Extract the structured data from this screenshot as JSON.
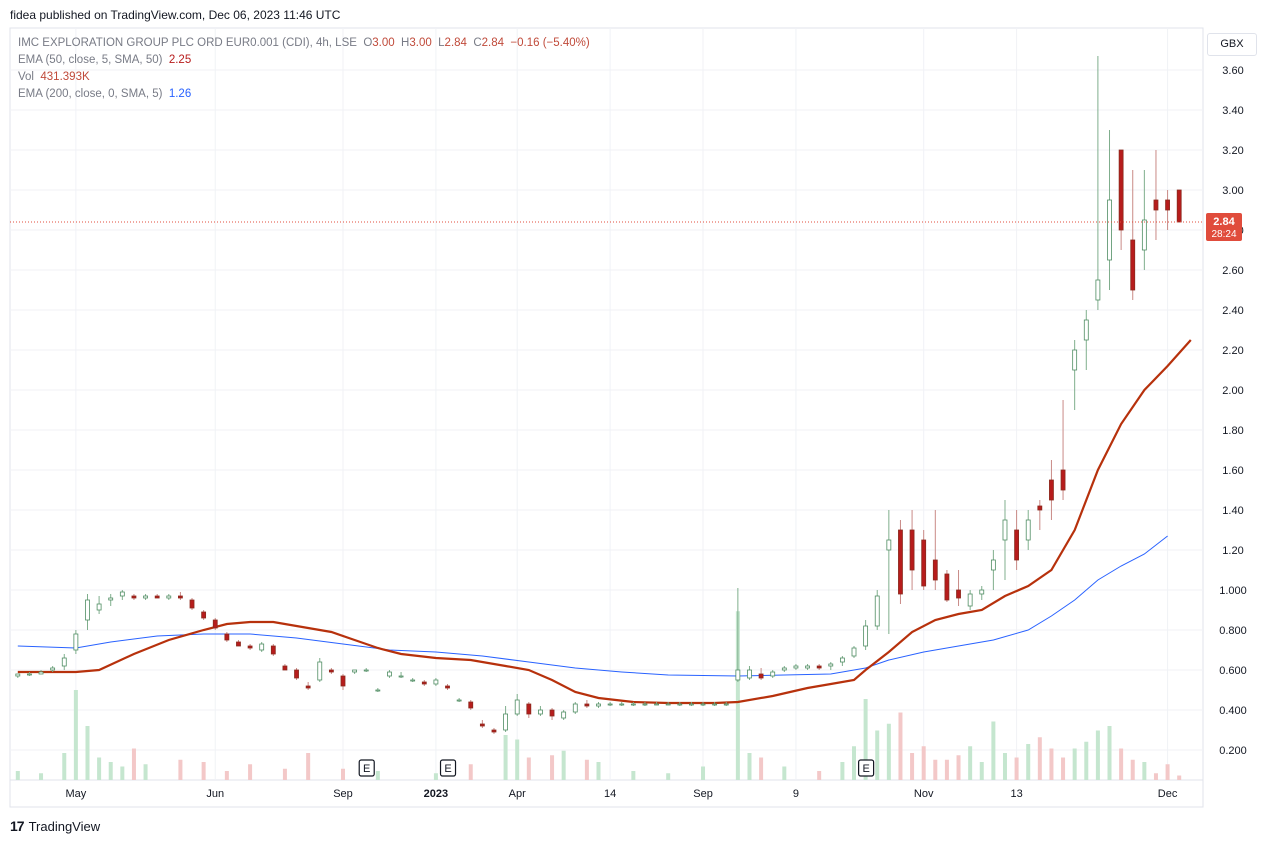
{
  "header": {
    "published_line": "fidea published on TradingView.com, Dec 06, 2023 11:46 UTC"
  },
  "legend": {
    "symbol_line": "IMC EXPLORATION GROUP PLC ORD EUR0.001 (CDI), 4h, LSE",
    "ohlc": {
      "o_label": "O",
      "o": "3.00",
      "h_label": "H",
      "h": "3.00",
      "l_label": "L",
      "l": "2.84",
      "c_label": "C",
      "c": "2.84",
      "change": "−0.16 (−5.40%)"
    },
    "ema50_label": "EMA (50, close, 5, SMA, 50)",
    "ema50_value": "2.25",
    "vol_label": "Vol",
    "vol_value": "431.393K",
    "ema200_label": "EMA (200, close, 0, SMA, 5)",
    "ema200_value": "1.26"
  },
  "currency_button": "GBX",
  "footer": {
    "brand": "TradingView"
  },
  "colors": {
    "up": "#26a69a",
    "down": "#ef5350",
    "candle_up_body": "#ffffff",
    "candle_up_border": "#4f8d63",
    "candle_down_body": "#b71c1c",
    "ema50": "#b7310c",
    "ema200": "#2962ff",
    "vol_up": "#c5e6cf",
    "vol_down": "#f3c8c8",
    "price_tag": "#e04c3c"
  },
  "chart_data": {
    "type": "candlestick",
    "title": "IMC EXPLORATION GROUP PLC ORD EUR0.001 (CDI), 4h, LSE",
    "y_axis": {
      "ticks": [
        "3.60",
        "3.40",
        "3.20",
        "3.00",
        "2.80",
        "2.60",
        "2.40",
        "2.20",
        "2.00",
        "1.80",
        "1.60",
        "1.40",
        "1.20",
        "1.000",
        "0.800",
        "0.600",
        "0.400",
        "0.200"
      ],
      "range": [
        0.1,
        3.75
      ]
    },
    "x_axis": {
      "ticks": [
        "May",
        "Jun",
        "Sep",
        "2023",
        "Apr",
        "14",
        "Sep",
        "9",
        "Nov",
        "13",
        "Dec"
      ]
    },
    "last_price": {
      "value": "2.84",
      "countdown": "28:24"
    },
    "earnings_markers": [
      "E",
      "E",
      "E"
    ],
    "ema50": [
      [
        0,
        0.59
      ],
      [
        5,
        0.59
      ],
      [
        7,
        0.6
      ],
      [
        10,
        0.68
      ],
      [
        13,
        0.75
      ],
      [
        16,
        0.8
      ],
      [
        18,
        0.83
      ],
      [
        20,
        0.84
      ],
      [
        22,
        0.84
      ],
      [
        24,
        0.82
      ],
      [
        27,
        0.79
      ],
      [
        29,
        0.75
      ],
      [
        31,
        0.71
      ],
      [
        33,
        0.68
      ],
      [
        36,
        0.66
      ],
      [
        39,
        0.65
      ],
      [
        42,
        0.62
      ],
      [
        44,
        0.6
      ],
      [
        46,
        0.55
      ],
      [
        48,
        0.49
      ],
      [
        50,
        0.46
      ],
      [
        53,
        0.44
      ],
      [
        56,
        0.435
      ],
      [
        60,
        0.435
      ],
      [
        62,
        0.44
      ],
      [
        65,
        0.47
      ],
      [
        68,
        0.51
      ],
      [
        70,
        0.53
      ],
      [
        72,
        0.55
      ],
      [
        73,
        0.6
      ],
      [
        75,
        0.69
      ],
      [
        77,
        0.79
      ],
      [
        79,
        0.85
      ],
      [
        81,
        0.88
      ],
      [
        83,
        0.9
      ],
      [
        85,
        0.97
      ],
      [
        87,
        1.02
      ],
      [
        89,
        1.1
      ],
      [
        91,
        1.3
      ],
      [
        93,
        1.6
      ],
      [
        95,
        1.83
      ],
      [
        97,
        2.0
      ],
      [
        99,
        2.12
      ],
      [
        101,
        2.25
      ]
    ],
    "ema200": [
      [
        0,
        0.72
      ],
      [
        5,
        0.71
      ],
      [
        8,
        0.74
      ],
      [
        12,
        0.77
      ],
      [
        16,
        0.78
      ],
      [
        20,
        0.78
      ],
      [
        24,
        0.76
      ],
      [
        28,
        0.73
      ],
      [
        32,
        0.7
      ],
      [
        36,
        0.69
      ],
      [
        40,
        0.67
      ],
      [
        44,
        0.64
      ],
      [
        48,
        0.61
      ],
      [
        52,
        0.59
      ],
      [
        56,
        0.575
      ],
      [
        62,
        0.57
      ],
      [
        66,
        0.575
      ],
      [
        70,
        0.58
      ],
      [
        73,
        0.61
      ],
      [
        75,
        0.65
      ],
      [
        78,
        0.69
      ],
      [
        81,
        0.72
      ],
      [
        84,
        0.75
      ],
      [
        87,
        0.8
      ],
      [
        89,
        0.87
      ],
      [
        91,
        0.95
      ],
      [
        93,
        1.05
      ],
      [
        95,
        1.12
      ],
      [
        97,
        1.18
      ],
      [
        99,
        1.27
      ]
    ],
    "candles": [
      [
        0,
        0.57,
        0.58,
        0.56,
        0.58
      ],
      [
        1,
        0.58,
        0.59,
        0.57,
        0.58
      ],
      [
        2,
        0.58,
        0.6,
        0.58,
        0.59
      ],
      [
        3,
        0.6,
        0.62,
        0.59,
        0.61
      ],
      [
        4,
        0.62,
        0.68,
        0.6,
        0.66
      ],
      [
        5,
        0.7,
        0.8,
        0.68,
        0.78
      ],
      [
        6,
        0.85,
        0.98,
        0.8,
        0.95
      ],
      [
        7,
        0.9,
        0.97,
        0.88,
        0.93
      ],
      [
        8,
        0.95,
        0.98,
        0.92,
        0.96
      ],
      [
        9,
        0.97,
        1.0,
        0.95,
        0.99
      ],
      [
        10,
        0.97,
        0.98,
        0.95,
        0.96
      ],
      [
        11,
        0.96,
        0.98,
        0.95,
        0.97
      ],
      [
        12,
        0.97,
        0.98,
        0.96,
        0.96
      ],
      [
        13,
        0.96,
        0.98,
        0.95,
        0.97
      ],
      [
        14,
        0.97,
        0.99,
        0.95,
        0.96
      ],
      [
        15,
        0.95,
        0.96,
        0.9,
        0.91
      ],
      [
        16,
        0.89,
        0.9,
        0.85,
        0.86
      ],
      [
        17,
        0.85,
        0.86,
        0.8,
        0.81
      ],
      [
        18,
        0.78,
        0.79,
        0.74,
        0.75
      ],
      [
        19,
        0.74,
        0.75,
        0.72,
        0.72
      ],
      [
        20,
        0.72,
        0.73,
        0.7,
        0.71
      ],
      [
        21,
        0.7,
        0.74,
        0.69,
        0.73
      ],
      [
        22,
        0.72,
        0.73,
        0.67,
        0.68
      ],
      [
        23,
        0.62,
        0.63,
        0.6,
        0.6
      ],
      [
        24,
        0.6,
        0.61,
        0.55,
        0.56
      ],
      [
        25,
        0.52,
        0.54,
        0.5,
        0.51
      ],
      [
        26,
        0.55,
        0.66,
        0.54,
        0.64
      ],
      [
        27,
        0.6,
        0.61,
        0.58,
        0.59
      ],
      [
        28,
        0.57,
        0.58,
        0.5,
        0.52
      ],
      [
        29,
        0.59,
        0.6,
        0.58,
        0.6
      ],
      [
        30,
        0.6,
        0.61,
        0.59,
        0.6
      ],
      [
        31,
        0.5,
        0.51,
        0.49,
        0.5
      ],
      [
        32,
        0.57,
        0.6,
        0.56,
        0.59
      ],
      [
        33,
        0.57,
        0.59,
        0.56,
        0.57
      ],
      [
        34,
        0.55,
        0.56,
        0.54,
        0.55
      ],
      [
        35,
        0.54,
        0.55,
        0.52,
        0.53
      ],
      [
        36,
        0.53,
        0.56,
        0.52,
        0.55
      ],
      [
        37,
        0.52,
        0.53,
        0.5,
        0.51
      ],
      [
        38,
        0.45,
        0.46,
        0.44,
        0.45
      ],
      [
        39,
        0.44,
        0.45,
        0.4,
        0.41
      ],
      [
        40,
        0.33,
        0.35,
        0.31,
        0.32
      ],
      [
        41,
        0.3,
        0.31,
        0.28,
        0.29
      ],
      [
        42,
        0.3,
        0.42,
        0.29,
        0.38
      ],
      [
        43,
        0.38,
        0.48,
        0.37,
        0.45
      ],
      [
        44,
        0.43,
        0.44,
        0.36,
        0.38
      ],
      [
        45,
        0.38,
        0.42,
        0.37,
        0.4
      ],
      [
        46,
        0.4,
        0.41,
        0.35,
        0.37
      ],
      [
        47,
        0.36,
        0.4,
        0.35,
        0.39
      ],
      [
        48,
        0.39,
        0.44,
        0.38,
        0.43
      ],
      [
        49,
        0.43,
        0.45,
        0.41,
        0.42
      ],
      [
        50,
        0.42,
        0.44,
        0.41,
        0.43
      ],
      [
        51,
        0.43,
        0.44,
        0.42,
        0.43
      ],
      [
        52,
        0.43,
        0.44,
        0.42,
        0.43
      ],
      [
        53,
        0.43,
        0.44,
        0.42,
        0.43
      ],
      [
        54,
        0.43,
        0.44,
        0.42,
        0.43
      ],
      [
        55,
        0.43,
        0.44,
        0.43,
        0.43
      ],
      [
        56,
        0.43,
        0.44,
        0.43,
        0.43
      ],
      [
        57,
        0.43,
        0.44,
        0.42,
        0.43
      ],
      [
        58,
        0.43,
        0.44,
        0.42,
        0.43
      ],
      [
        59,
        0.43,
        0.44,
        0.42,
        0.43
      ],
      [
        60,
        0.43,
        0.44,
        0.42,
        0.43
      ],
      [
        61,
        0.43,
        0.44,
        0.42,
        0.43
      ],
      [
        62,
        0.55,
        1.01,
        0.54,
        0.6
      ],
      [
        63,
        0.56,
        0.62,
        0.55,
        0.6
      ],
      [
        64,
        0.58,
        0.61,
        0.55,
        0.56
      ],
      [
        65,
        0.57,
        0.6,
        0.56,
        0.59
      ],
      [
        66,
        0.6,
        0.62,
        0.59,
        0.61
      ],
      [
        67,
        0.61,
        0.63,
        0.6,
        0.62
      ],
      [
        68,
        0.61,
        0.63,
        0.6,
        0.62
      ],
      [
        69,
        0.62,
        0.63,
        0.6,
        0.61
      ],
      [
        70,
        0.62,
        0.64,
        0.6,
        0.63
      ],
      [
        71,
        0.64,
        0.67,
        0.62,
        0.66
      ],
      [
        72,
        0.67,
        0.72,
        0.66,
        0.71
      ],
      [
        73,
        0.72,
        0.85,
        0.7,
        0.82
      ],
      [
        74,
        0.82,
        1.0,
        0.8,
        0.97
      ],
      [
        75,
        1.2,
        1.4,
        0.78,
        1.25
      ],
      [
        76,
        1.3,
        1.35,
        0.93,
        0.98
      ],
      [
        77,
        1.3,
        1.4,
        1.0,
        1.1
      ],
      [
        78,
        1.25,
        1.3,
        1.0,
        1.02
      ],
      [
        79,
        1.15,
        1.4,
        1.0,
        1.05
      ],
      [
        80,
        1.08,
        1.1,
        0.94,
        0.95
      ],
      [
        81,
        1.0,
        1.1,
        0.92,
        0.96
      ],
      [
        82,
        0.92,
        1.0,
        0.9,
        0.98
      ],
      [
        83,
        0.98,
        1.02,
        0.95,
        1.0
      ],
      [
        84,
        1.1,
        1.2,
        1.0,
        1.15
      ],
      [
        85,
        1.25,
        1.45,
        1.05,
        1.35
      ],
      [
        86,
        1.3,
        1.4,
        1.1,
        1.15
      ],
      [
        87,
        1.25,
        1.4,
        1.2,
        1.35
      ],
      [
        88,
        1.42,
        1.45,
        1.3,
        1.4
      ],
      [
        89,
        1.55,
        1.65,
        1.35,
        1.45
      ],
      [
        90,
        1.6,
        1.95,
        1.45,
        1.5
      ],
      [
        91,
        2.1,
        2.25,
        1.9,
        2.2
      ],
      [
        92,
        2.25,
        2.4,
        2.1,
        2.35
      ],
      [
        93,
        2.45,
        3.67,
        2.4,
        2.55
      ],
      [
        94,
        2.65,
        3.3,
        2.5,
        2.95
      ],
      [
        95,
        3.2,
        3.2,
        2.7,
        2.8
      ],
      [
        96,
        2.75,
        3.1,
        2.45,
        2.5
      ],
      [
        97,
        2.7,
        3.1,
        2.6,
        2.85
      ],
      [
        98,
        2.95,
        3.2,
        2.75,
        2.9
      ],
      [
        99,
        2.95,
        3.0,
        2.8,
        2.9
      ],
      [
        100,
        3.0,
        3.0,
        2.84,
        2.84
      ]
    ],
    "volume": [
      [
        0,
        4
      ],
      [
        2,
        3
      ],
      [
        4,
        12
      ],
      [
        5,
        40
      ],
      [
        6,
        24
      ],
      [
        7,
        10
      ],
      [
        8,
        8
      ],
      [
        9,
        6
      ],
      [
        10,
        14
      ],
      [
        11,
        7
      ],
      [
        14,
        9
      ],
      [
        16,
        8
      ],
      [
        18,
        4
      ],
      [
        20,
        7
      ],
      [
        23,
        5
      ],
      [
        25,
        12
      ],
      [
        28,
        5
      ],
      [
        31,
        4
      ],
      [
        36,
        3
      ],
      [
        39,
        7
      ],
      [
        42,
        20
      ],
      [
        43,
        18
      ],
      [
        44,
        10
      ],
      [
        46,
        11
      ],
      [
        47,
        13
      ],
      [
        49,
        9
      ],
      [
        50,
        8
      ],
      [
        53,
        4
      ],
      [
        56,
        3
      ],
      [
        59,
        6
      ],
      [
        62,
        75
      ],
      [
        63,
        12
      ],
      [
        64,
        10
      ],
      [
        66,
        6
      ],
      [
        69,
        4
      ],
      [
        71,
        8
      ],
      [
        72,
        15
      ],
      [
        73,
        36
      ],
      [
        74,
        22
      ],
      [
        75,
        25
      ],
      [
        76,
        30
      ],
      [
        77,
        12
      ],
      [
        78,
        15
      ],
      [
        79,
        9
      ],
      [
        80,
        9
      ],
      [
        81,
        11
      ],
      [
        82,
        15
      ],
      [
        83,
        8
      ],
      [
        84,
        26
      ],
      [
        85,
        12
      ],
      [
        86,
        10
      ],
      [
        87,
        16
      ],
      [
        88,
        19
      ],
      [
        89,
        14
      ],
      [
        90,
        10
      ],
      [
        91,
        14
      ],
      [
        92,
        17
      ],
      [
        93,
        22
      ],
      [
        94,
        24
      ],
      [
        95,
        14
      ],
      [
        96,
        9
      ],
      [
        97,
        8
      ],
      [
        98,
        3
      ],
      [
        99,
        7
      ],
      [
        100,
        2
      ]
    ]
  }
}
